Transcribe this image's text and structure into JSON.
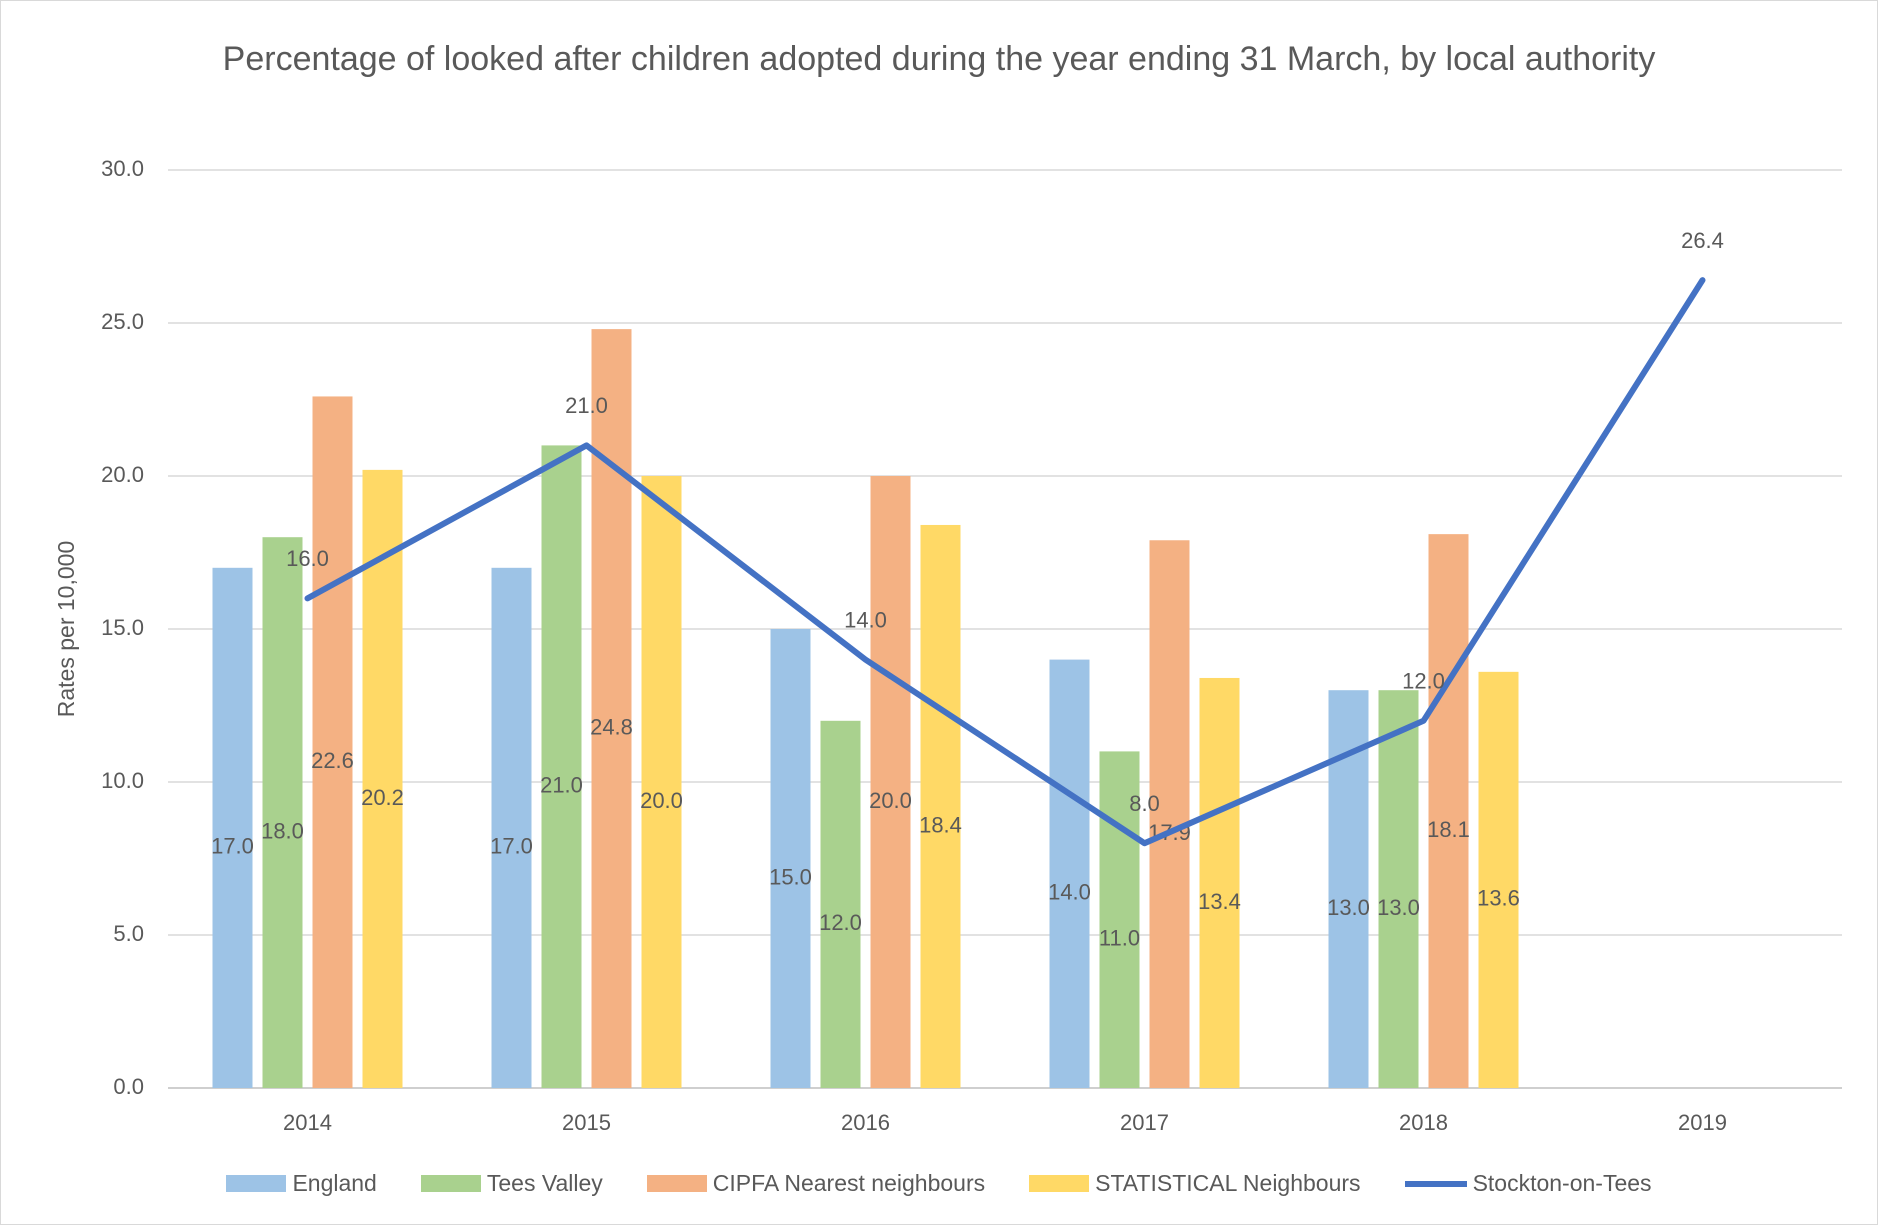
{
  "chart_data": {
    "type": "bar",
    "title": "Percentage of looked after children adopted during the year ending 31 March, by local authority",
    "y_label": "Rates per 10,000",
    "categories": [
      "2014",
      "2015",
      "2016",
      "2017",
      "2018",
      "2019"
    ],
    "series": [
      {
        "name": "England",
        "type": "bar",
        "color": "#9dc3e6",
        "values": [
          17,
          17,
          15,
          14,
          13,
          null
        ],
        "value_labels": [
          "17.0",
          "17.0",
          "15.0",
          "14.0",
          "13.0",
          null
        ]
      },
      {
        "name": "Tees Valley",
        "type": "bar",
        "color": "#a9d18e",
        "values": [
          18,
          21,
          12,
          11,
          13,
          null
        ],
        "value_labels": [
          "18.0",
          "21.0",
          "12.0",
          "11.0",
          "13.0",
          null
        ]
      },
      {
        "name": "CIPFA Nearest neighbours",
        "type": "bar",
        "color": "#f4b183",
        "values": [
          22.6,
          24.8,
          20.0,
          17.9,
          18.1,
          null
        ],
        "value_labels": [
          "22.6",
          "24.8",
          "20.0",
          "17.9",
          "18.1",
          null
        ]
      },
      {
        "name": "STATISTICAL Neighbours",
        "type": "bar",
        "color": "#ffd966",
        "values": [
          20.2,
          20.0,
          18.4,
          13.4,
          13.6,
          null
        ],
        "value_labels": [
          "20.2",
          "20.0",
          "18.4",
          "13.4",
          "13.6",
          null
        ]
      },
      {
        "name": "Stockton-on-Tees",
        "type": "line",
        "color": "#4472c4",
        "values": [
          16,
          21,
          14,
          8,
          12,
          26.4
        ],
        "value_labels": [
          "16.0",
          "21.0",
          "14.0",
          "8.0",
          "12.0",
          "26.4"
        ]
      }
    ],
    "ylim": [
      0,
      30
    ],
    "yticks": [
      {
        "value": 0,
        "label": "0.0"
      },
      {
        "value": 5,
        "label": "5.0"
      },
      {
        "value": 10,
        "label": "10.0"
      },
      {
        "value": 15,
        "label": "15.0"
      },
      {
        "value": 20,
        "label": "20.0"
      },
      {
        "value": 25,
        "label": "25.0"
      },
      {
        "value": 30,
        "label": "30.0"
      }
    ],
    "grid": true,
    "legend": "bottom"
  }
}
